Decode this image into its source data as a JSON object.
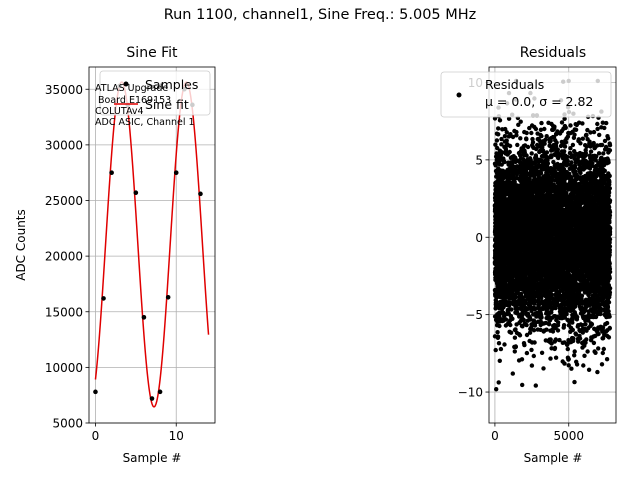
{
  "figure": {
    "suptitle": "Run 1100, channel1, Sine Freq.: 5.005 MHz"
  },
  "chart_data": [
    {
      "type": "scatter",
      "title": "Sine Fit",
      "xlabel": "Sample #",
      "ylabel": "ADC Counts",
      "xlim": [
        -0.8,
        14.8
      ],
      "ylim": [
        5000,
        37000
      ],
      "xticks": [
        0,
        10
      ],
      "yticks": [
        5000,
        10000,
        15000,
        20000,
        25000,
        30000,
        35000
      ],
      "grid": true,
      "legend": {
        "placement": "top-right",
        "entries": [
          "Samples",
          "Sine fit"
        ]
      },
      "annotation": [
        "ATLAS Upgrade",
        " Board E169153",
        "COLUTAv4",
        "ADC ASIC, Channel 1"
      ],
      "series": [
        {
          "name": "Samples",
          "kind": "points",
          "color": "#000000",
          "x": [
            0,
            1,
            2,
            3,
            4,
            5,
            6,
            7,
            8,
            9,
            10,
            11,
            12,
            13
          ],
          "y": [
            7800,
            16200,
            27500,
            35300,
            33600,
            25700,
            14500,
            7200,
            7800,
            16300,
            27500,
            35000,
            33600,
            25600
          ]
        },
        {
          "name": "Sine fit",
          "kind": "line",
          "color": "#e00000",
          "x_range": [
            0,
            14
          ],
          "amplitude": 14600,
          "offset": 21050,
          "period_samples": 8.0,
          "peak_at_sample": 3.25
        }
      ]
    },
    {
      "type": "scatter",
      "title": "Residuals",
      "xlabel": "Sample #",
      "ylabel": "",
      "xlim": [
        -400,
        8200
      ],
      "ylim": [
        -12,
        11
      ],
      "xticks": [
        0,
        5000
      ],
      "yticks": [
        -10,
        -5,
        0,
        5,
        10
      ],
      "grid": true,
      "legend": {
        "placement": "top-right",
        "entries": [
          "Residuals",
          "μ = 0.0, σ = 2.82"
        ]
      },
      "series": [
        {
          "name": "Residuals",
          "kind": "points",
          "color": "#000000",
          "n_points": 8000,
          "x_range": [
            0,
            7800
          ],
          "mean": 0.0,
          "std": 2.82,
          "approx_extremes": [
            -10.9,
            10.1
          ]
        }
      ]
    }
  ]
}
